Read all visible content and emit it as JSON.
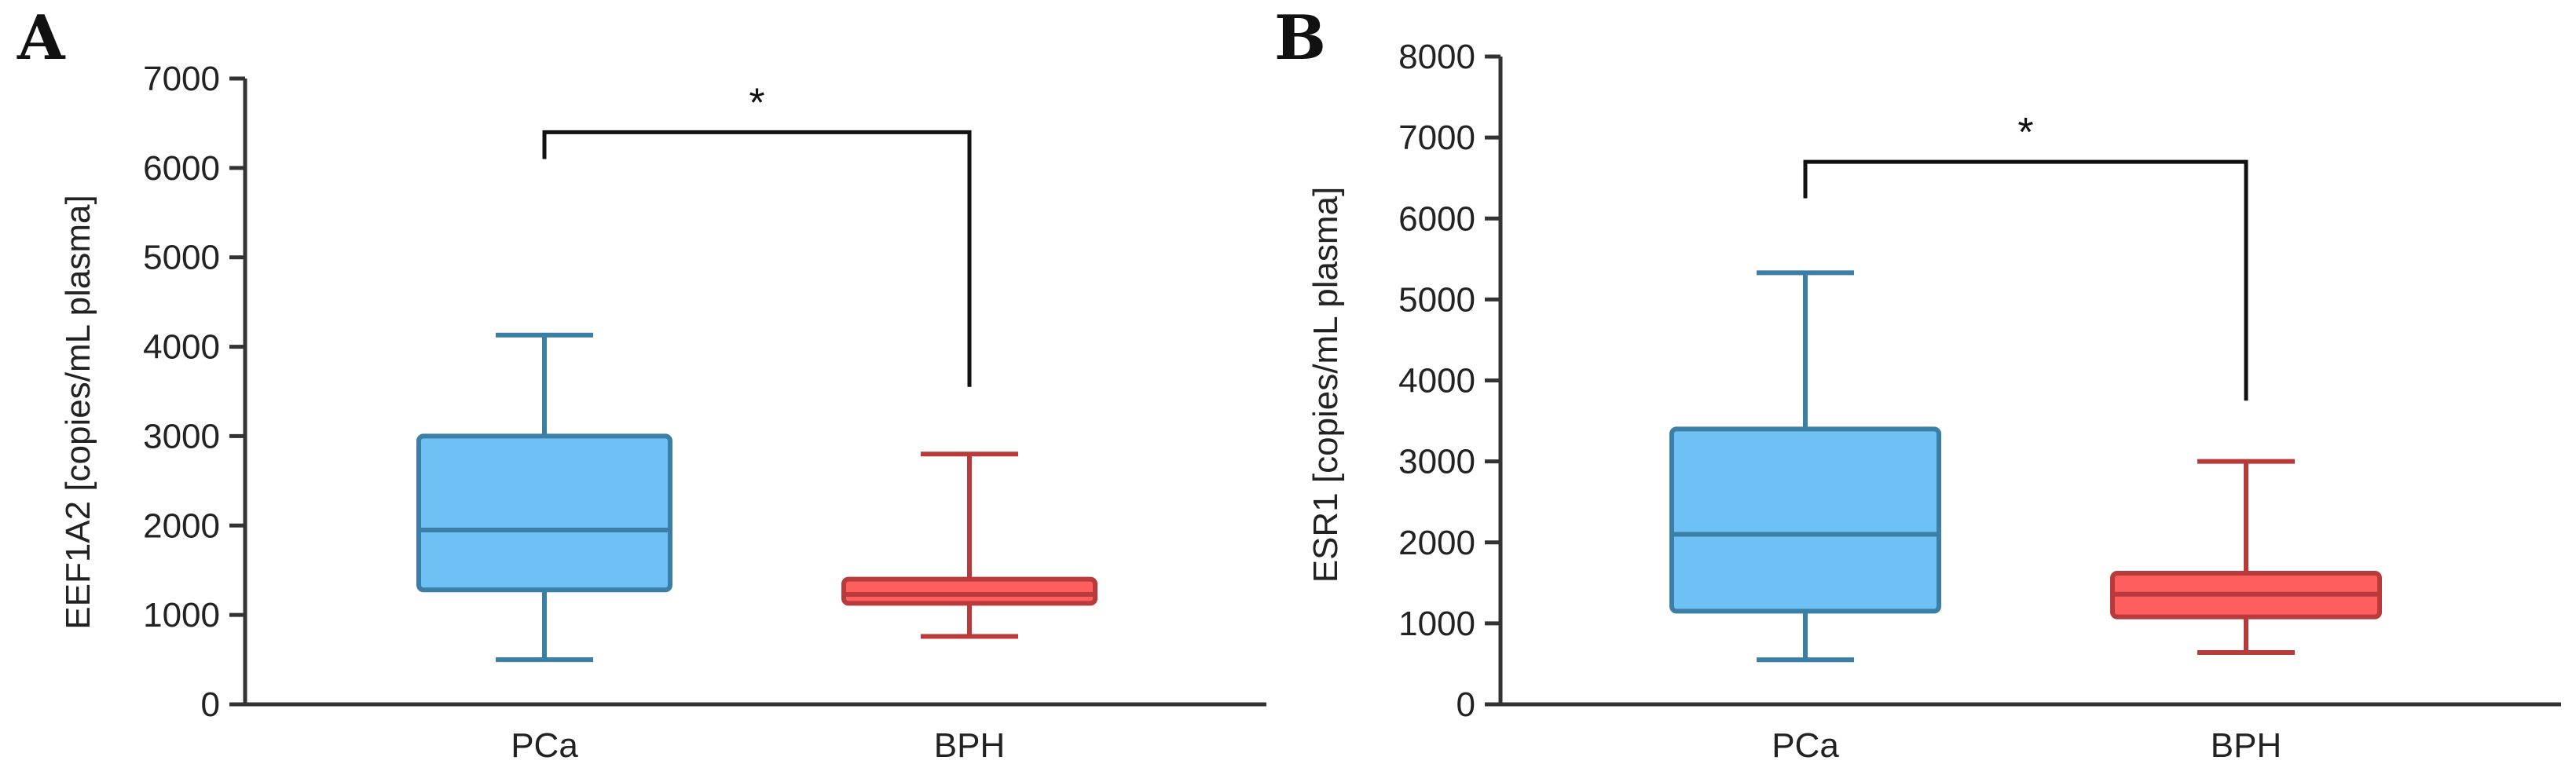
{
  "panels": [
    {
      "letter": "A",
      "chart_data": {
        "type": "box",
        "ylabel": "EEF1A2 [copies/mL plasma]",
        "xlabel": "",
        "ylim": [
          0,
          7000
        ],
        "yticks": [
          0,
          1000,
          2000,
          3000,
          4000,
          5000,
          6000,
          7000
        ],
        "categories": [
          "PCa",
          "BPH"
        ],
        "boxes": [
          {
            "name": "PCa",
            "min": 500,
            "q1": 1280,
            "median": 1950,
            "q3": 3000,
            "max": 4130,
            "fill": "#6EC1F5",
            "stroke": "#3C7FA6"
          },
          {
            "name": "BPH",
            "min": 760,
            "q1": 1130,
            "median": 1230,
            "q3": 1400,
            "max": 2800,
            "fill": "#FF5E5E",
            "stroke": "#B83A3A"
          }
        ],
        "significance": {
          "label": "*",
          "between": [
            "PCa",
            "BPH"
          ],
          "bracket_y": 6400,
          "left_end": 6100,
          "right_end": 3550
        }
      }
    },
    {
      "letter": "B",
      "chart_data": {
        "type": "box",
        "ylabel": "ESR1 [copies/mL plasma]",
        "xlabel": "",
        "ylim": [
          0,
          8000
        ],
        "yticks": [
          0,
          1000,
          2000,
          3000,
          4000,
          5000,
          6000,
          7000,
          8000
        ],
        "categories": [
          "PCa",
          "BPH"
        ],
        "boxes": [
          {
            "name": "PCa",
            "min": 550,
            "q1": 1150,
            "median": 2100,
            "q3": 3400,
            "max": 5330,
            "fill": "#6EC1F5",
            "stroke": "#3C7FA6"
          },
          {
            "name": "BPH",
            "min": 640,
            "q1": 1080,
            "median": 1360,
            "q3": 1620,
            "max": 3000,
            "fill": "#FF5E5E",
            "stroke": "#B83A3A"
          }
        ],
        "significance": {
          "label": "*",
          "between": [
            "PCa",
            "BPH"
          ],
          "bracket_y": 6700,
          "left_end": 6250,
          "right_end": 3750
        }
      }
    }
  ]
}
